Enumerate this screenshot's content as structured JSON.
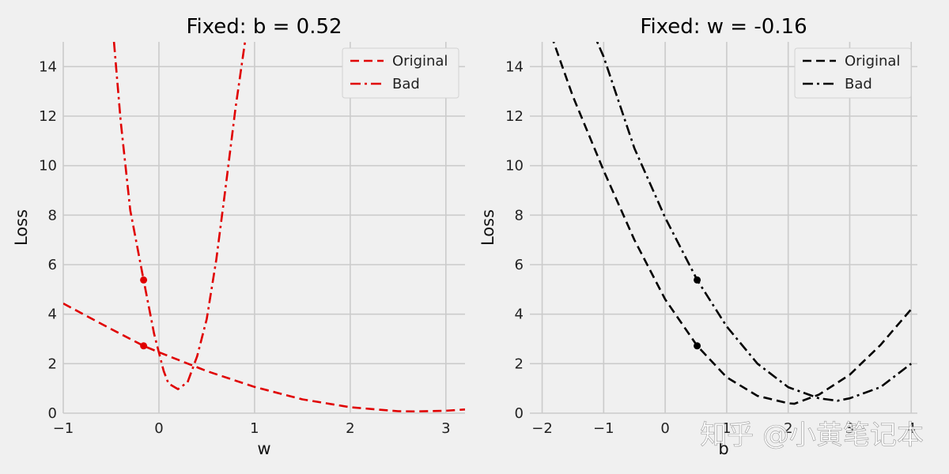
{
  "watermark": "知乎 @小黄笔记本",
  "chart_data": [
    {
      "type": "line",
      "title": "Fixed: b = 0.52",
      "xlabel": "w",
      "ylabel": "Loss",
      "xlim": [
        -1.0,
        3.2
      ],
      "ylim": [
        0,
        15
      ],
      "xticks": [
        -1,
        0,
        1,
        2,
        3
      ],
      "yticks": [
        0,
        2,
        4,
        6,
        8,
        10,
        12,
        14
      ],
      "grid": true,
      "legend_position": "top-right",
      "color": "#e00000",
      "series": [
        {
          "name": "Original",
          "style": "dashed",
          "x": [
            -1.0,
            -0.5,
            -0.16,
            0.0,
            0.5,
            1.0,
            1.5,
            2.0,
            2.5,
            2.7,
            3.0,
            3.2
          ],
          "y": [
            4.43,
            3.4,
            2.72,
            2.46,
            1.7,
            1.06,
            0.56,
            0.24,
            0.08,
            0.07,
            0.1,
            0.15
          ]
        },
        {
          "name": "Bad",
          "style": "dashdot",
          "x": [
            -0.47,
            -0.4,
            -0.3,
            -0.16,
            -0.05,
            0.05,
            0.1,
            0.2,
            0.3,
            0.4,
            0.5,
            0.6,
            0.7,
            0.8,
            0.9
          ],
          "y": [
            15.0,
            11.8,
            8.2,
            5.38,
            3.2,
            1.7,
            1.2,
            0.97,
            1.25,
            2.3,
            3.8,
            6.2,
            9.2,
            12.3,
            15.0
          ]
        }
      ],
      "markers": [
        {
          "x": -0.16,
          "y": 2.72
        },
        {
          "x": -0.16,
          "y": 5.38
        }
      ]
    },
    {
      "type": "line",
      "title": "Fixed: w = -0.16",
      "xlabel": "b",
      "ylabel": "Loss",
      "xlim": [
        -2.2,
        4.1
      ],
      "ylim": [
        0,
        15
      ],
      "xticks": [
        -2,
        -1,
        0,
        1,
        2,
        3,
        4
      ],
      "yticks": [
        0,
        2,
        4,
        6,
        8,
        10,
        12,
        14
      ],
      "grid": true,
      "legend_position": "top-right",
      "color": "#000000",
      "series": [
        {
          "name": "Original",
          "style": "dashed",
          "x": [
            -2.0,
            -1.5,
            -1.0,
            -0.5,
            0.0,
            0.52,
            1.0,
            1.5,
            2.0,
            2.1,
            2.5,
            3.0,
            3.5,
            4.0
          ],
          "y": [
            16.3,
            12.8,
            9.8,
            7.0,
            4.6,
            2.72,
            1.45,
            0.7,
            0.4,
            0.38,
            0.75,
            1.55,
            2.75,
            4.2
          ]
        },
        {
          "name": "Bad",
          "style": "dashdot",
          "x": [
            -2.0,
            -1.0,
            -0.5,
            0.0,
            0.52,
            1.0,
            1.5,
            2.0,
            2.5,
            2.8,
            3.0,
            3.5,
            4.0
          ],
          "y": [
            20.1,
            14.4,
            10.7,
            7.9,
            5.38,
            3.5,
            2.0,
            1.05,
            0.6,
            0.5,
            0.6,
            1.05,
            2.0
          ]
        }
      ],
      "markers": [
        {
          "x": 0.52,
          "y": 2.72
        },
        {
          "x": 0.52,
          "y": 5.38
        }
      ]
    }
  ]
}
